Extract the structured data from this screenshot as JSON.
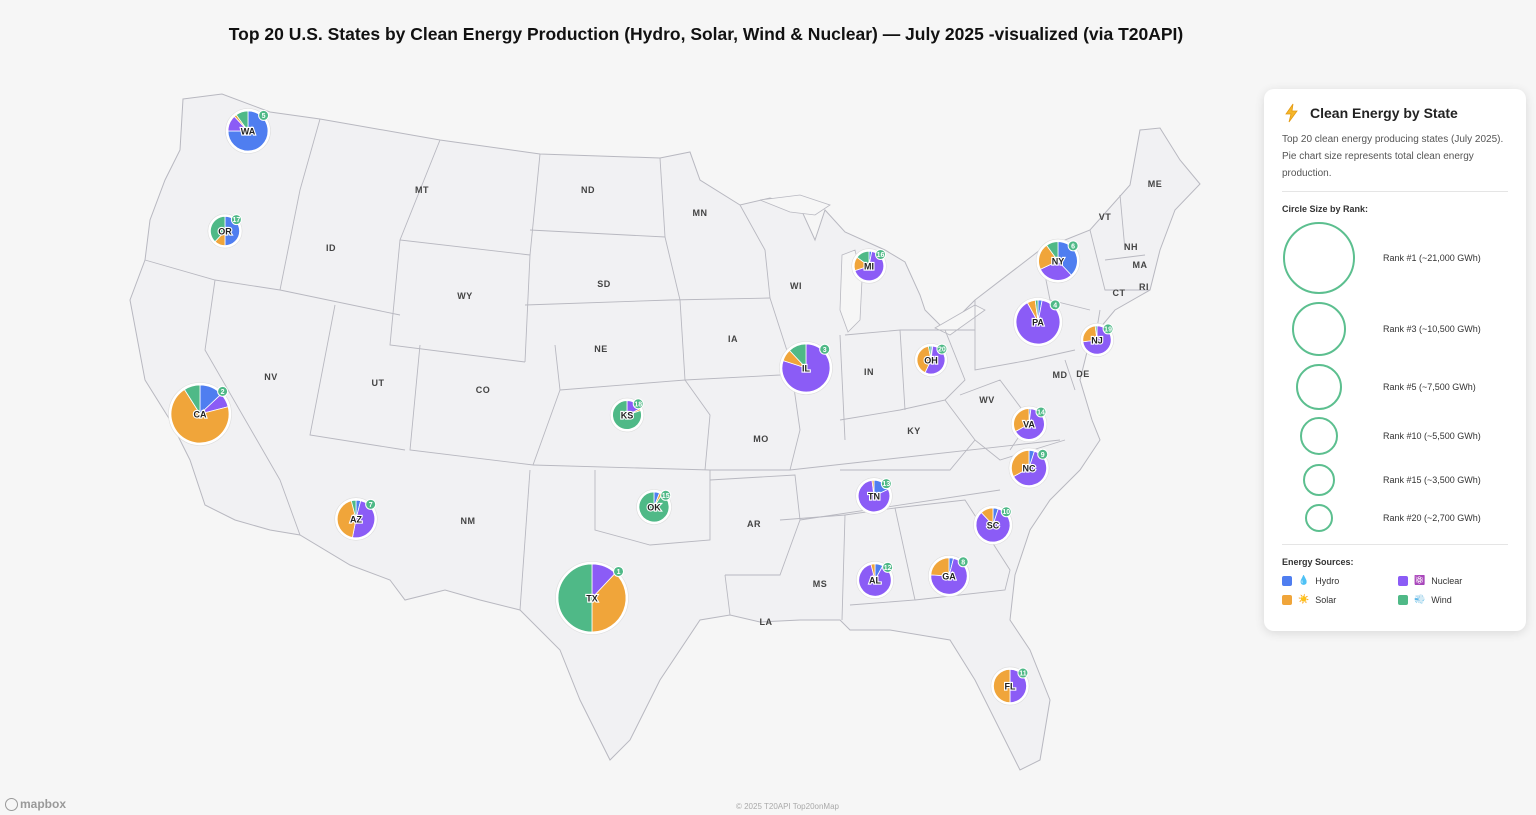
{
  "title": "Top 20 U.S. States by Clean Energy Production (Hydro, Solar, Wind & Nuclear) — July 2025 -visualized (via T20API)",
  "colors": {
    "hydro": "#4f7ef0",
    "solar": "#f0a53a",
    "nuclear": "#8b5cf6",
    "wind": "#4fb987",
    "rank_badge": "#4fb987",
    "land": "#f1f1f3",
    "border": "#b8b8c0"
  },
  "state_labels": [
    "MT",
    "ND",
    "MN",
    "ID",
    "WY",
    "SD",
    "NE",
    "NV",
    "UT",
    "CO",
    "IA",
    "WI",
    "MO",
    "IN",
    "KY",
    "WV",
    "MD",
    "DE",
    "ME",
    "VT",
    "NH",
    "MA",
    "CT",
    "RI",
    "NM",
    "AR",
    "MS",
    "LA"
  ],
  "states": [
    {
      "abbr": "TX",
      "rank": 1,
      "mix": {
        "hydro": 0,
        "solar": 38,
        "nuclear": 12,
        "wind": 50
      }
    },
    {
      "abbr": "CA",
      "rank": 2,
      "mix": {
        "hydro": 13,
        "solar": 70,
        "nuclear": 8,
        "wind": 9
      }
    },
    {
      "abbr": "IL",
      "rank": 3,
      "mix": {
        "hydro": 0,
        "solar": 8,
        "nuclear": 80,
        "wind": 12
      }
    },
    {
      "abbr": "PA",
      "rank": 4,
      "mix": {
        "hydro": 3,
        "solar": 6,
        "nuclear": 89,
        "wind": 2
      }
    },
    {
      "abbr": "WA",
      "rank": 5,
      "mix": {
        "hydro": 75,
        "solar": 2,
        "nuclear": 13,
        "wind": 10
      }
    },
    {
      "abbr": "NY",
      "rank": 6,
      "mix": {
        "hydro": 38,
        "solar": 22,
        "nuclear": 30,
        "wind": 10
      }
    },
    {
      "abbr": "AZ",
      "rank": 7,
      "mix": {
        "hydro": 4,
        "solar": 43,
        "nuclear": 49,
        "wind": 4
      }
    },
    {
      "abbr": "GA",
      "rank": 8,
      "mix": {
        "hydro": 4,
        "solar": 24,
        "nuclear": 72,
        "wind": 0
      }
    },
    {
      "abbr": "NC",
      "rank": 9,
      "mix": {
        "hydro": 5,
        "solar": 33,
        "nuclear": 62,
        "wind": 0
      }
    },
    {
      "abbr": "SC",
      "rank": 10,
      "mix": {
        "hydro": 5,
        "solar": 12,
        "nuclear": 83,
        "wind": 0
      }
    },
    {
      "abbr": "FL",
      "rank": 11,
      "mix": {
        "hydro": 0,
        "solar": 50,
        "nuclear": 50,
        "wind": 0
      }
    },
    {
      "abbr": "AL",
      "rank": 12,
      "mix": {
        "hydro": 8,
        "solar": 4,
        "nuclear": 88,
        "wind": 0
      }
    },
    {
      "abbr": "TN",
      "rank": 13,
      "mix": {
        "hydro": 18,
        "solar": 2,
        "nuclear": 80,
        "wind": 0
      }
    },
    {
      "abbr": "VA",
      "rank": 14,
      "mix": {
        "hydro": 2,
        "solar": 33,
        "nuclear": 65,
        "wind": 0
      }
    },
    {
      "abbr": "OK",
      "rank": 15,
      "mix": {
        "hydro": 6,
        "solar": 3,
        "nuclear": 0,
        "wind": 91
      }
    },
    {
      "abbr": "MI",
      "rank": 16,
      "mix": {
        "hydro": 3,
        "solar": 15,
        "nuclear": 67,
        "wind": 15
      }
    },
    {
      "abbr": "OR",
      "rank": 17,
      "mix": {
        "hydro": 50,
        "solar": 12,
        "nuclear": 0,
        "wind": 38
      }
    },
    {
      "abbr": "KS",
      "rank": 18,
      "mix": {
        "hydro": 0,
        "solar": 2,
        "nuclear": 18,
        "wind": 80
      }
    },
    {
      "abbr": "NJ",
      "rank": 19,
      "mix": {
        "hydro": 0,
        "solar": 25,
        "nuclear": 73,
        "wind": 2
      }
    },
    {
      "abbr": "OH",
      "rank": 20,
      "mix": {
        "hydro": 2,
        "solar": 40,
        "nuclear": 55,
        "wind": 3
      }
    }
  ],
  "legend": {
    "icon": "lightning-bolt-icon",
    "title": "Clean Energy by State",
    "description": "Top 20 clean energy producing states (July 2025). Pie chart size represents total clean energy production.",
    "size_title": "Circle Size by Rank:",
    "sizes": [
      {
        "label": "Rank #1 (~21,000 GWh)"
      },
      {
        "label": "Rank #3 (~10,500 GWh)"
      },
      {
        "label": "Rank #5 (~7,500 GWh)"
      },
      {
        "label": "Rank #10 (~5,500 GWh)"
      },
      {
        "label": "Rank #15 (~3,500 GWh)"
      },
      {
        "label": "Rank #20 (~2,700 GWh)"
      }
    ],
    "sources_title": "Energy Sources:",
    "sources": [
      {
        "key": "hydro",
        "emoji": "💧",
        "label": "Hydro"
      },
      {
        "key": "nuclear",
        "emoji": "⚛️",
        "label": "Nuclear"
      },
      {
        "key": "solar",
        "emoji": "☀️",
        "label": "Solar"
      },
      {
        "key": "wind",
        "emoji": "💨",
        "label": "Wind"
      }
    ]
  },
  "mapbox_logo": "mapbox",
  "attribution": "© 2025 T20API Top20onMap"
}
